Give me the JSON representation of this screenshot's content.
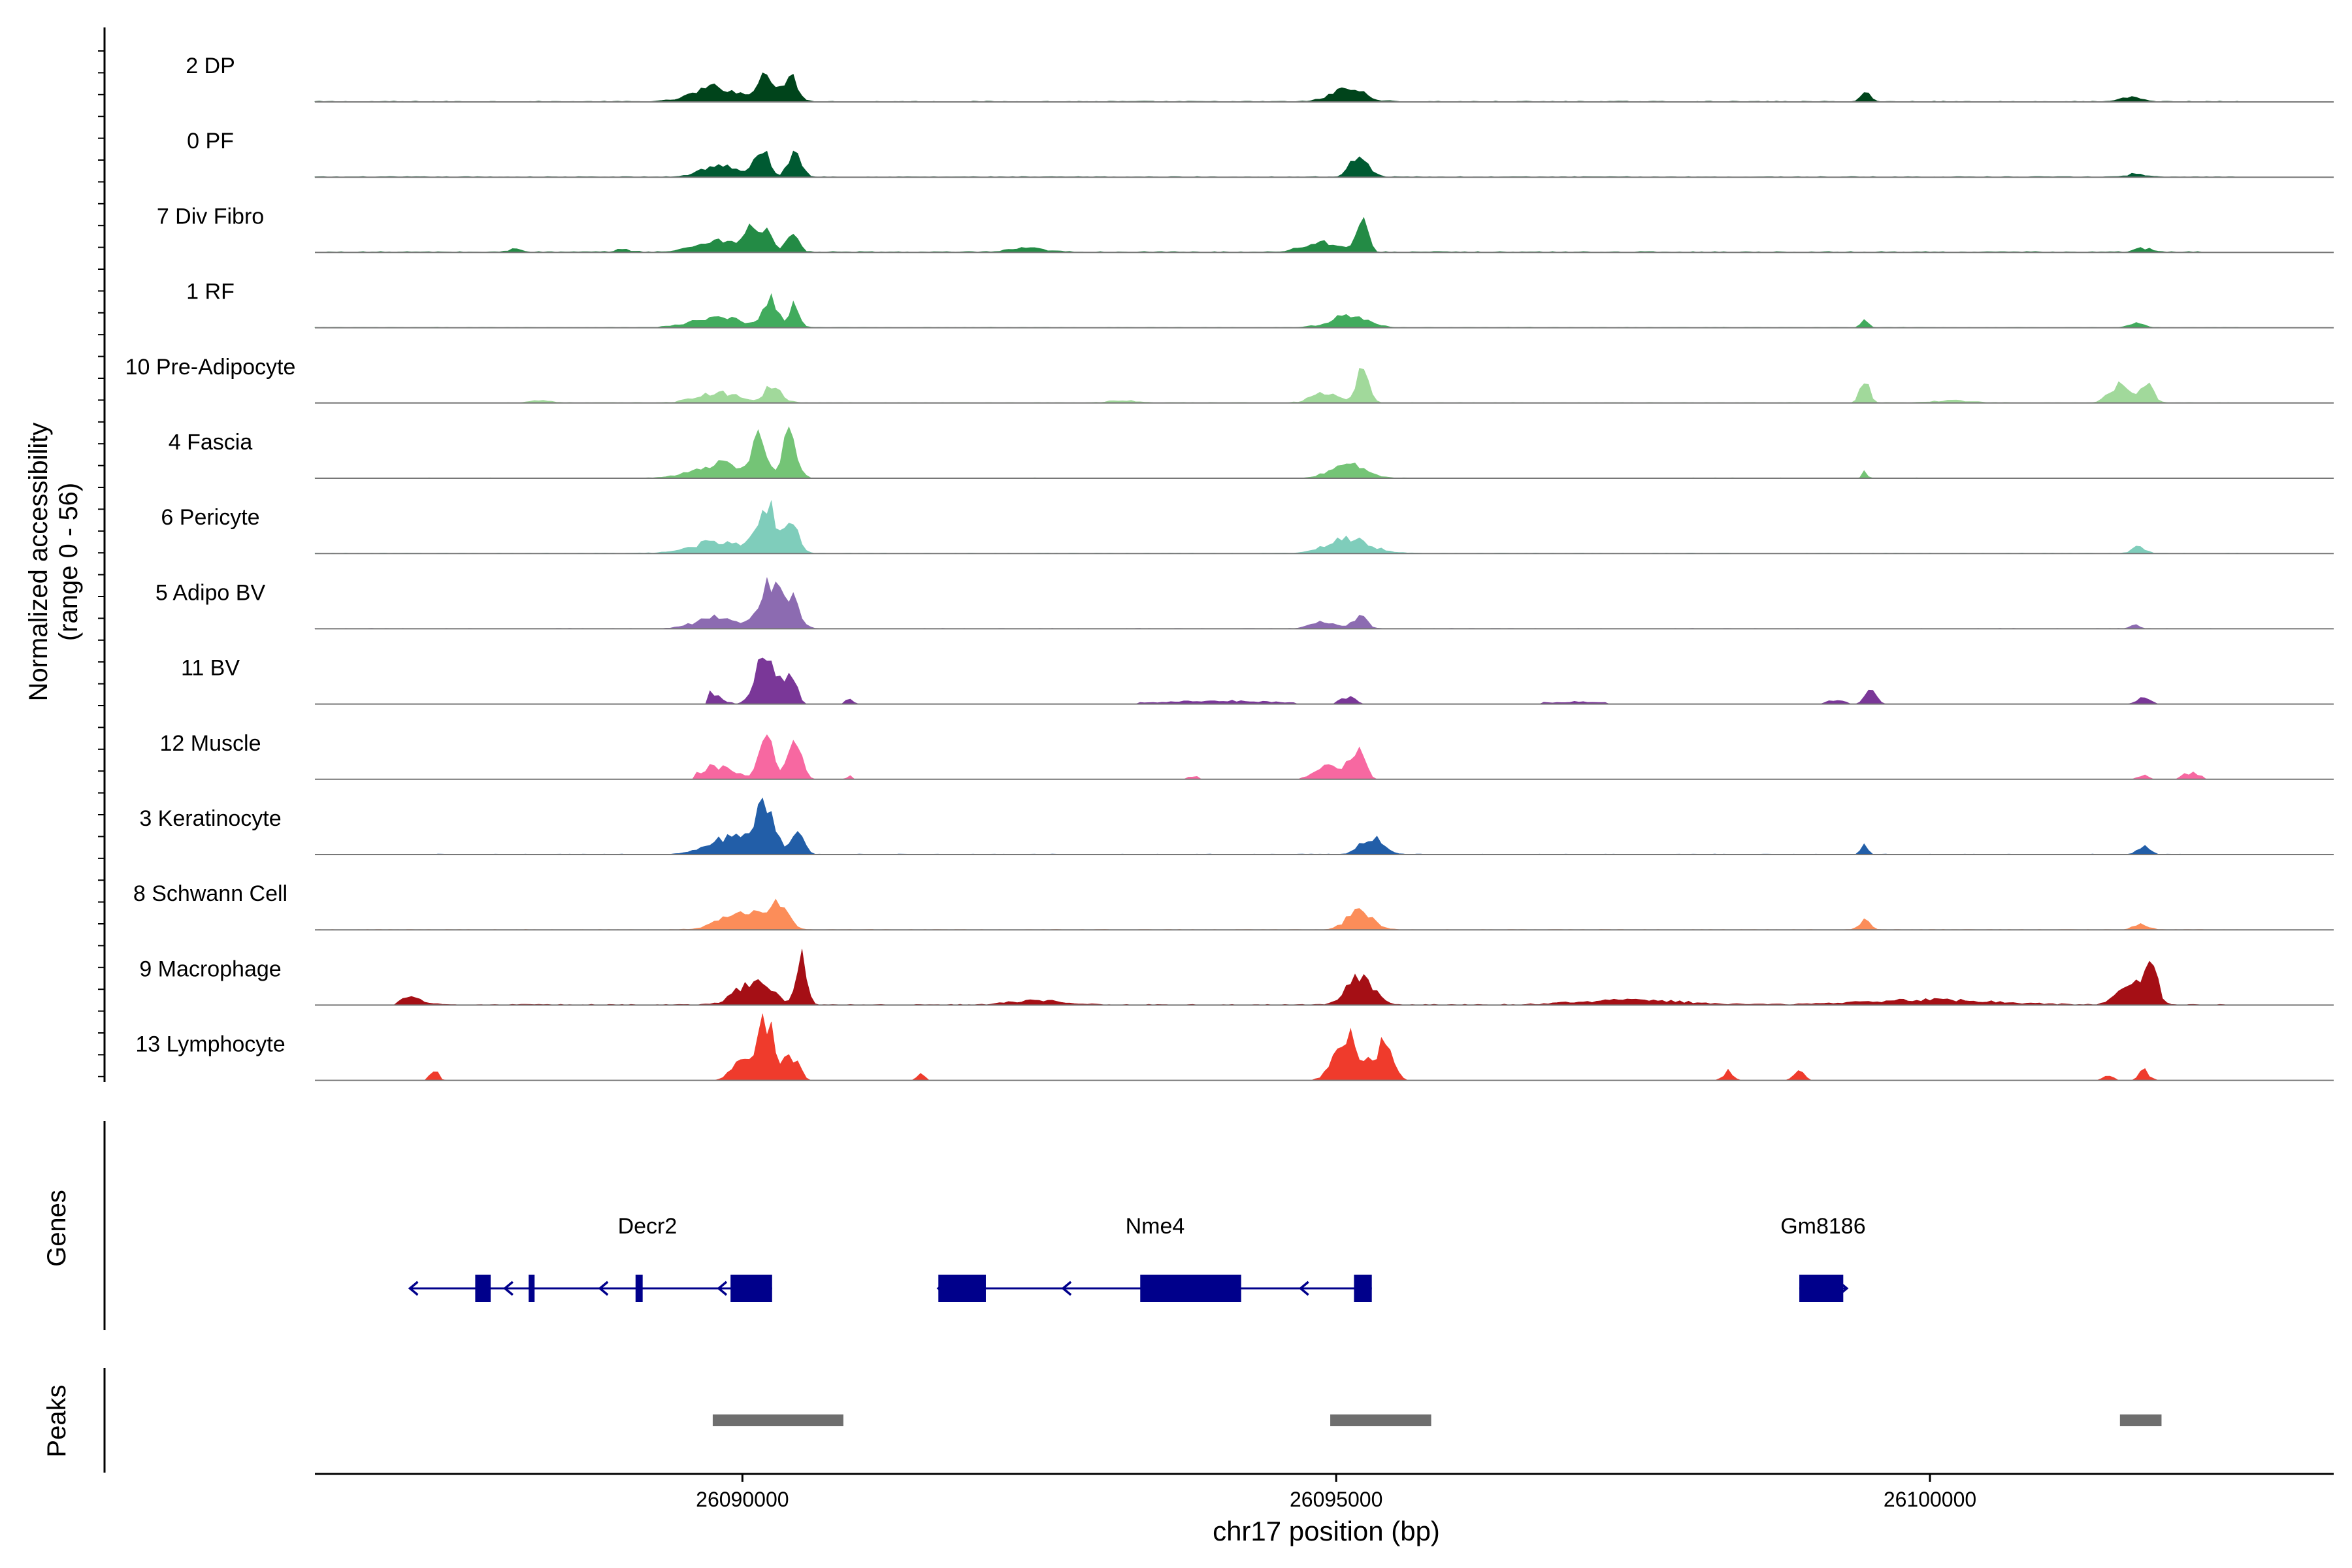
{
  "chart_data": {
    "type": "area",
    "subtype": "genome-coverage-track",
    "chromosome": "chr17",
    "xlabel": "chr17 position (bp)",
    "ylabel_line1": "Normalized accessibility",
    "ylabel_line2": "(range 0 - 56)",
    "y_range": [
      0,
      56
    ],
    "xlim": [
      26086400,
      26103400
    ],
    "x_ticks": [
      26090000,
      26095000,
      26100000
    ],
    "x_tick_labels": [
      "26090000",
      "26095000",
      "26100000"
    ],
    "tracks": [
      {
        "name": "2 DP",
        "color": "#00441b",
        "peaks": [
          [
            26089780,
            520,
            12
          ],
          [
            26090180,
            160,
            26
          ],
          [
            26090400,
            180,
            22
          ],
          [
            26095100,
            380,
            11
          ],
          [
            26099460,
            100,
            9
          ],
          [
            26101700,
            220,
            4
          ]
        ],
        "noise": 1.2,
        "extent": [
          26086400,
          26102600
        ]
      },
      {
        "name": "0 PF",
        "color": "#005a32",
        "peaks": [
          [
            26089800,
            400,
            10
          ],
          [
            26090160,
            160,
            24
          ],
          [
            26090440,
            150,
            22
          ],
          [
            26095200,
            200,
            20
          ],
          [
            26101740,
            180,
            3
          ]
        ],
        "noise": 1.0,
        "extent": [
          26086400,
          26102600
        ]
      },
      {
        "name": "7 Div Fibro",
        "color": "#238b45",
        "peaks": [
          [
            26089800,
            500,
            10
          ],
          [
            26090060,
            120,
            22
          ],
          [
            26090200,
            120,
            24
          ],
          [
            26090420,
            140,
            16
          ],
          [
            26094900,
            480,
            8
          ],
          [
            26095220,
            120,
            28
          ],
          [
            26088100,
            150,
            3
          ],
          [
            26089000,
            200,
            2
          ],
          [
            26092400,
            400,
            3
          ],
          [
            26101800,
            200,
            3
          ]
        ],
        "noise": 1.5,
        "extent": [
          26086500,
          26102400
        ]
      },
      {
        "name": "1 RF",
        "color": "#41ab5d",
        "peaks": [
          [
            26089800,
            600,
            8
          ],
          [
            26090240,
            160,
            24
          ],
          [
            26090440,
            120,
            18
          ],
          [
            26095100,
            420,
            10
          ],
          [
            26099450,
            80,
            6
          ],
          [
            26101740,
            150,
            4
          ]
        ],
        "noise": 0.8,
        "extent": [
          26086400,
          26102600
        ]
      },
      {
        "name": "10 Pre-Adipocyte",
        "color": "#a1d99b",
        "peaks": [
          [
            26089800,
            500,
            8
          ],
          [
            26090260,
            200,
            14
          ],
          [
            26094900,
            300,
            8
          ],
          [
            26095220,
            140,
            26
          ],
          [
            26099450,
            100,
            20
          ],
          [
            26101620,
            260,
            16
          ],
          [
            26101840,
            140,
            14
          ],
          [
            26088300,
            250,
            2
          ],
          [
            26093200,
            300,
            2
          ],
          [
            26100200,
            400,
            2
          ]
        ],
        "noise": 0.9,
        "extent": [
          26088000,
          26102600
        ]
      },
      {
        "name": "4 Fascia",
        "color": "#74c476",
        "peaks": [
          [
            26089820,
            600,
            12
          ],
          [
            26090140,
            160,
            30
          ],
          [
            26090400,
            160,
            38
          ],
          [
            26095100,
            400,
            12
          ],
          [
            26099450,
            60,
            5
          ]
        ],
        "noise": 0.7,
        "extent": [
          26086400,
          26102600
        ]
      },
      {
        "name": "6 Pericyte",
        "color": "#7fcdbb",
        "peaks": [
          [
            26089800,
            600,
            10
          ],
          [
            26090200,
            220,
            40
          ],
          [
            26090420,
            150,
            28
          ],
          [
            26095100,
            500,
            12
          ],
          [
            26101760,
            140,
            6
          ]
        ],
        "noise": 0.8,
        "extent": [
          26086400,
          26102600
        ]
      },
      {
        "name": "5 Adipo BV",
        "color": "#8c6bb1",
        "peaks": [
          [
            26089800,
            500,
            10
          ],
          [
            26090220,
            200,
            38
          ],
          [
            26090400,
            200,
            26
          ],
          [
            26094900,
            300,
            6
          ],
          [
            26095200,
            160,
            10
          ],
          [
            26101720,
            100,
            4
          ]
        ],
        "noise": 0.7,
        "extent": [
          26086400,
          26102600
        ]
      },
      {
        "name": "11 BV",
        "color": "#7a3798",
        "peaks": [
          [
            26089700,
            300,
            10
          ],
          [
            26090200,
            220,
            46
          ],
          [
            26090400,
            160,
            24
          ],
          [
            26090900,
            80,
            6
          ],
          [
            26094000,
            1400,
            3
          ],
          [
            26095100,
            160,
            7
          ],
          [
            26099500,
            120,
            14
          ],
          [
            26099200,
            200,
            4
          ],
          [
            26101800,
            180,
            5
          ],
          [
            26097000,
            800,
            2
          ]
        ],
        "noise": 0.6,
        "extent": [
          26089700,
          26102000
        ],
        "sparse": true
      },
      {
        "name": "12 Muscle",
        "color": "#f768a1",
        "peaks": [
          [
            26089800,
            400,
            12
          ],
          [
            26090200,
            160,
            40
          ],
          [
            26090440,
            160,
            32
          ],
          [
            26095000,
            400,
            14
          ],
          [
            26095200,
            140,
            20
          ],
          [
            26093800,
            120,
            3
          ],
          [
            26101800,
            140,
            4
          ],
          [
            26102200,
            200,
            6
          ],
          [
            26090900,
            60,
            3
          ]
        ],
        "noise": 0.6,
        "extent": [
          26089600,
          26102700
        ],
        "sparse": true
      },
      {
        "name": "3 Keratinocyte",
        "color": "#225ea8",
        "peaks": [
          [
            26089900,
            500,
            14
          ],
          [
            26090200,
            220,
            40
          ],
          [
            26090460,
            140,
            22
          ],
          [
            26095300,
            260,
            14
          ],
          [
            26099450,
            80,
            7
          ],
          [
            26101800,
            140,
            6
          ]
        ],
        "noise": 0.8,
        "extent": [
          26087400,
          26102600
        ]
      },
      {
        "name": "8 Schwann Cell",
        "color": "#fc8d59",
        "peaks": [
          [
            26090000,
            500,
            14
          ],
          [
            26090300,
            220,
            20
          ],
          [
            26095200,
            300,
            16
          ],
          [
            26099450,
            120,
            8
          ],
          [
            26101780,
            160,
            5
          ]
        ],
        "noise": 0.7,
        "extent": [
          26086400,
          26102600
        ]
      },
      {
        "name": "9 Macrophage",
        "color": "#a50f15",
        "peaks": [
          [
            26090100,
            400,
            20
          ],
          [
            26090500,
            120,
            44
          ],
          [
            26095200,
            300,
            24
          ],
          [
            26101700,
            300,
            18
          ],
          [
            26101860,
            140,
            36
          ],
          [
            26087200,
            300,
            6
          ],
          [
            26097500,
            1200,
            4
          ],
          [
            26100000,
            1500,
            4
          ],
          [
            26092500,
            600,
            4
          ]
        ],
        "noise": 1.2,
        "extent": [
          26087100,
          26102500
        ]
      },
      {
        "name": "13 Lymphocyte",
        "color": "#ef3b2c",
        "peaks": [
          [
            26090200,
            160,
            56
          ],
          [
            26090000,
            250,
            16
          ],
          [
            26090400,
            200,
            22
          ],
          [
            26095100,
            300,
            40
          ],
          [
            26095400,
            200,
            30
          ],
          [
            26087400,
            100,
            10
          ],
          [
            26091500,
            120,
            5
          ],
          [
            26098300,
            120,
            8
          ],
          [
            26098900,
            120,
            8
          ],
          [
            26101500,
            120,
            4
          ],
          [
            26101800,
            120,
            10
          ]
        ],
        "noise": 0.8,
        "extent": [
          26087200,
          26102200
        ],
        "sparse": true
      }
    ],
    "genes": [
      {
        "name": "Decr2",
        "strand": "-",
        "start": 26087200,
        "end": 26090250,
        "exons": [
          [
            26087750,
            26087880
          ],
          [
            26088200,
            26088250
          ],
          [
            26089100,
            26089160
          ],
          [
            26089900,
            26090250
          ]
        ],
        "arrows": [
          26088000,
          26088800,
          26089800
        ]
      },
      {
        "name": "Nme4",
        "strand": "-",
        "start": 26091650,
        "end": 26095300,
        "exons": [
          [
            26091650,
            26092050
          ],
          [
            26093350,
            26094200
          ],
          [
            26095150,
            26095300
          ]
        ],
        "arrows": [
          26092700,
          26094700
        ]
      },
      {
        "name": "Gm8186",
        "strand": "+",
        "start": 26098900,
        "end": 26099300,
        "exons": [
          [
            26098900,
            26099270
          ]
        ],
        "arrows": [
          26099300
        ]
      }
    ],
    "peaks_track": [
      [
        26089750,
        26090850
      ],
      [
        26094950,
        26095800
      ],
      [
        26101600,
        26101950
      ]
    ],
    "panel_labels": {
      "genes": "Genes",
      "peaks": "Peaks"
    },
    "gene_color": "#00008b",
    "peak_color": "#6e6e6e"
  }
}
